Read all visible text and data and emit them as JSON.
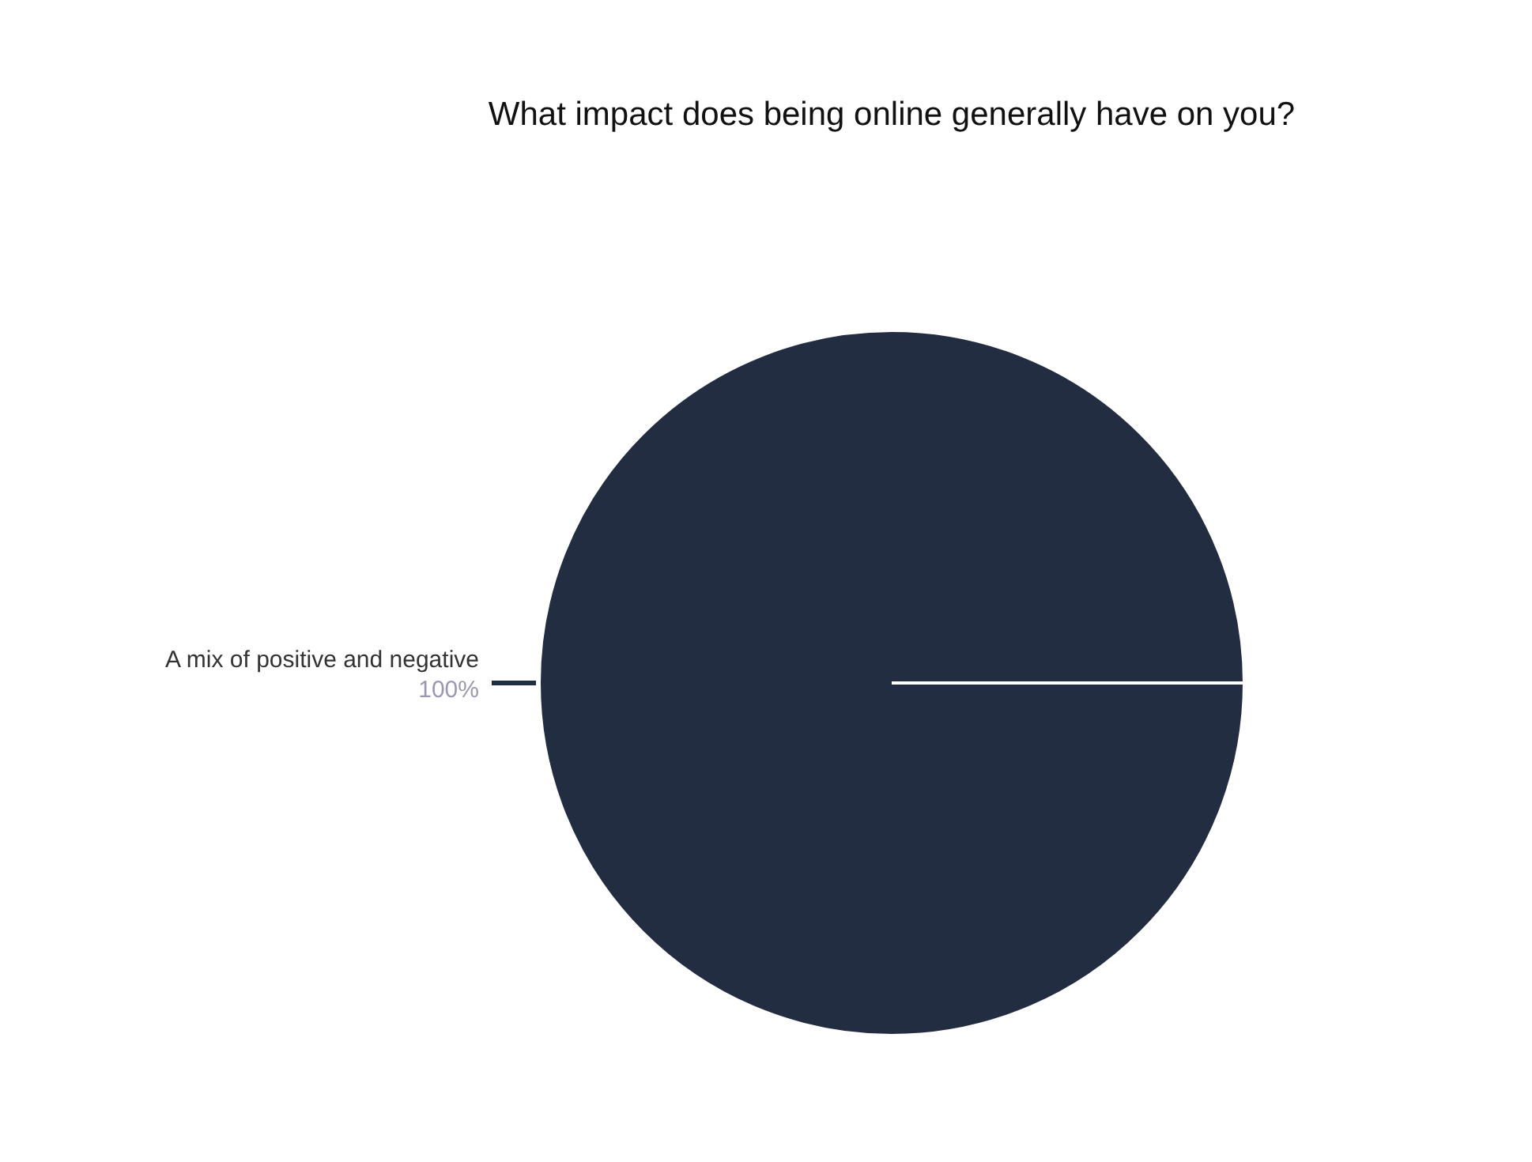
{
  "chart_data": {
    "type": "pie",
    "title": "What impact does being online generally have on you?",
    "categories": [
      "A mix of positive and negative"
    ],
    "values": [
      100
    ],
    "colors": [
      "#222d42"
    ],
    "value_labels": [
      "100%"
    ]
  }
}
